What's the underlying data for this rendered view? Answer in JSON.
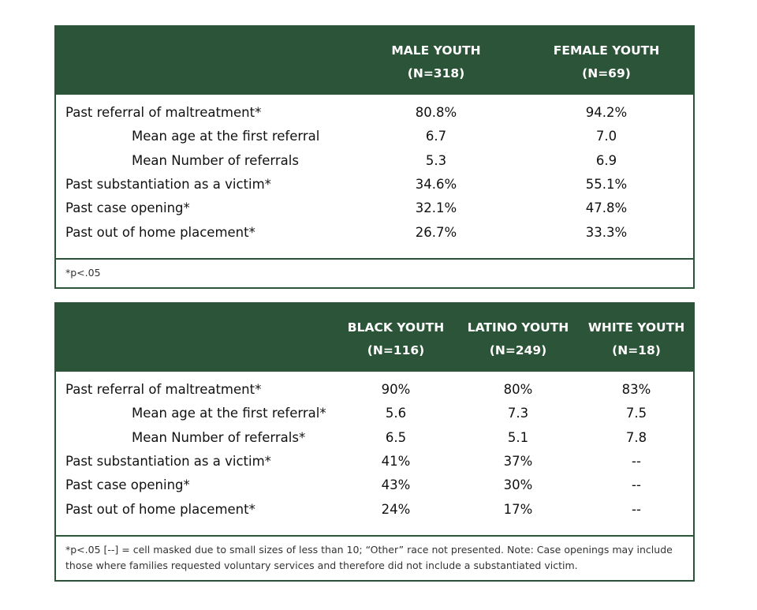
{
  "table1": {
    "columns": [
      {
        "title": "MALE YOUTH",
        "n": "(N=318)"
      },
      {
        "title": "FEMALE YOUTH",
        "n": "(N=69)"
      }
    ],
    "rows": [
      {
        "label": "Past referral of maltreatment*",
        "indent": false,
        "values": [
          "80.8%",
          "94.2%"
        ]
      },
      {
        "label": "Mean age at the first referral",
        "indent": true,
        "values": [
          "6.7",
          "7.0"
        ]
      },
      {
        "label": "Mean Number of referrals",
        "indent": true,
        "values": [
          "5.3",
          "6.9"
        ]
      },
      {
        "label": "Past substantiation as a victim*",
        "indent": false,
        "values": [
          "34.6%",
          "55.1%"
        ]
      },
      {
        "label": "Past case opening*",
        "indent": false,
        "values": [
          "32.1%",
          "47.8%"
        ]
      },
      {
        "label": "Past out of home placement*",
        "indent": false,
        "values": [
          "26.7%",
          "33.3%"
        ]
      }
    ],
    "footnote": "*p<.05"
  },
  "table2": {
    "columns": [
      {
        "title": "BLACK YOUTH",
        "n": "(N=116)"
      },
      {
        "title": "LATINO YOUTH",
        "n": "(N=249)"
      },
      {
        "title": "WHITE YOUTH",
        "n": "(N=18)"
      }
    ],
    "rows": [
      {
        "label": "Past referral of maltreatment*",
        "indent": false,
        "values": [
          "90%",
          "80%",
          "83%"
        ]
      },
      {
        "label": "Mean age at the first referral*",
        "indent": true,
        "values": [
          "5.6",
          "7.3",
          "7.5"
        ]
      },
      {
        "label": "Mean Number of referrals*",
        "indent": true,
        "values": [
          "6.5",
          "5.1",
          "7.8"
        ]
      },
      {
        "label": "Past substantiation as a victim*",
        "indent": false,
        "values": [
          "41%",
          "37%",
          "--"
        ]
      },
      {
        "label": "Past case opening*",
        "indent": false,
        "values": [
          "43%",
          "30%",
          "--"
        ]
      },
      {
        "label": "Past out of home placement*",
        "indent": false,
        "values": [
          "24%",
          "17%",
          "--"
        ]
      }
    ],
    "footnote": "*p<.05 [--] = cell masked due to small sizes of less than 10; “Other” race not presented. Note: Case openings may include those where families requested voluntary services and therefore did not include a substantiated victim."
  }
}
